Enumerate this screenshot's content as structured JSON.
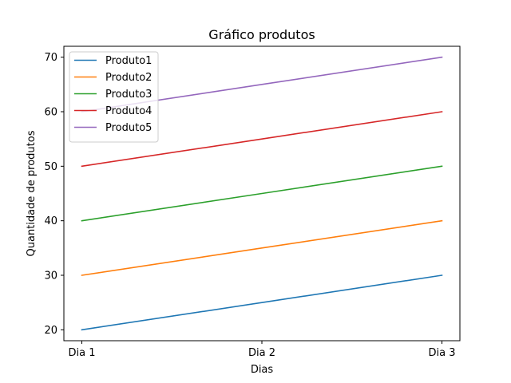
{
  "chart_data": {
    "type": "line",
    "title": "Gráfico produtos",
    "xlabel": "Dias",
    "ylabel": "Quantidade de produtos",
    "categories": [
      "Dia 1",
      "Dia 2",
      "Dia 3"
    ],
    "ylim": [
      18,
      72
    ],
    "yticks": [
      20,
      30,
      40,
      50,
      60,
      70
    ],
    "grid": false,
    "legend_position": "top-left",
    "series": [
      {
        "name": "Produto1",
        "color": "#1f77b4",
        "values": [
          20,
          25,
          30
        ]
      },
      {
        "name": "Produto2",
        "color": "#ff7f0e",
        "values": [
          30,
          35,
          40
        ]
      },
      {
        "name": "Produto3",
        "color": "#2ca02c",
        "values": [
          40,
          45,
          50
        ]
      },
      {
        "name": "Produto4",
        "color": "#d62728",
        "values": [
          50,
          55,
          60
        ]
      },
      {
        "name": "Produto5",
        "color": "#9467bd",
        "values": [
          60,
          65,
          70
        ]
      }
    ]
  }
}
